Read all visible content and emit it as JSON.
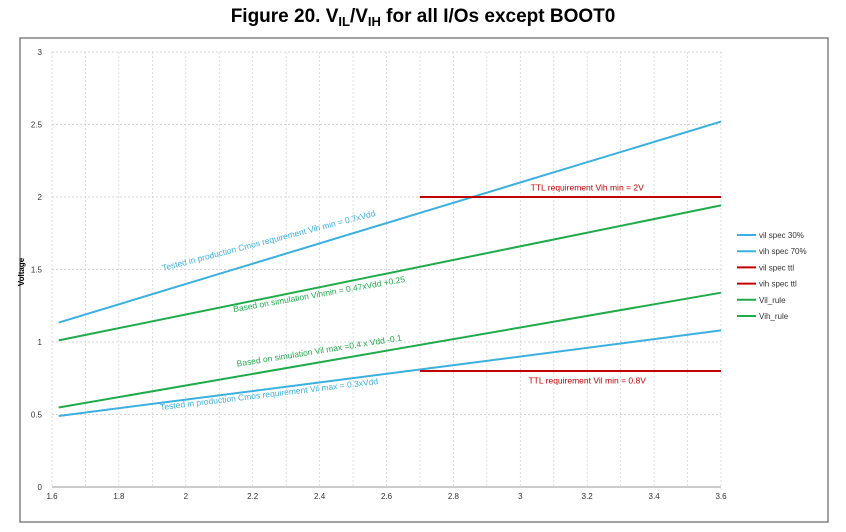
{
  "title": {
    "prefix": "Figure 20. V",
    "sub1": "IL",
    "mid": "/V",
    "sub2": "IH",
    "suffix": " for all I/Os except BOOT0"
  },
  "chart_data": {
    "type": "line",
    "ylabel": "Voltage",
    "xlabel": "",
    "xlim": [
      1.6,
      3.6
    ],
    "ylim": [
      0,
      3
    ],
    "x_ticks": [
      1.6,
      1.8,
      2,
      2.2,
      2.4,
      2.6,
      2.8,
      3,
      3.2,
      3.4,
      3.6
    ],
    "x_tick_labels": [
      "1.6",
      "1.8",
      "2",
      "2.2",
      "2.4",
      "2.6",
      "2.8",
      "3",
      "3.2",
      "3.4",
      "3.6"
    ],
    "y_ticks": [
      0,
      0.5,
      1,
      1.5,
      2,
      2.5,
      3
    ],
    "y_tick_labels": [
      "0",
      "0.5",
      "1",
      "1.5",
      "2",
      "2.5",
      "3"
    ],
    "grid": true,
    "legend_position": "right",
    "series": [
      {
        "name": "vil spec 30%",
        "color": "#3bb0df",
        "x": [
          1.62,
          2.7,
          3.6
        ],
        "y": [
          0.49,
          0.81,
          1.08
        ]
      },
      {
        "name": "vih spec 70%",
        "color": "#3bb0df",
        "x": [
          1.62,
          2.7,
          3.6
        ],
        "y": [
          1.134,
          1.89,
          2.52
        ]
      },
      {
        "name": "vil spec ttl",
        "color": "#c00000",
        "x": [
          2.7,
          3.6
        ],
        "y": [
          0.8,
          0.8
        ]
      },
      {
        "name": "vih spec ttl",
        "color": "#c00000",
        "x": [
          2.7,
          3.6
        ],
        "y": [
          2.0,
          2.0
        ]
      },
      {
        "name": "Vil_rule",
        "color": "#1fab4a",
        "x": [
          1.62,
          3.6
        ],
        "y": [
          0.548,
          1.34
        ]
      },
      {
        "name": "Vih_rule",
        "color": "#1fab4a",
        "x": [
          1.62,
          3.6
        ],
        "y": [
          1.011,
          1.942
        ]
      }
    ],
    "annotations": [
      {
        "text": "Tested in production Cmos requirement Vih min = 0.7xVdd",
        "color": "#3bb0df",
        "x": 2.25,
        "y": 1.68,
        "angle": -14.5
      },
      {
        "text": "Based on simulation Vihmin = 0.47xVdd +0.25",
        "color": "#1fab4a",
        "x": 2.4,
        "y": 1.31,
        "angle": -10
      },
      {
        "text": "Based on simulation Vil max =0.4 x Vdd -0.1",
        "color": "#1fab4a",
        "x": 2.4,
        "y": 0.92,
        "angle": -9
      },
      {
        "text": "Tested in production Cmos requirement Vil max = 0.3xVdd",
        "color": "#3bb0df",
        "x": 2.25,
        "y": 0.62,
        "angle": -6.8
      },
      {
        "text": "TTL requirement Vih min = 2V",
        "color": "#c00000",
        "x": 3.2,
        "y": 2.045,
        "angle": 0
      },
      {
        "text": "TTL requirement Vil min = 0.8V",
        "color": "#c00000",
        "x": 3.2,
        "y": 0.715,
        "angle": 0
      }
    ]
  }
}
